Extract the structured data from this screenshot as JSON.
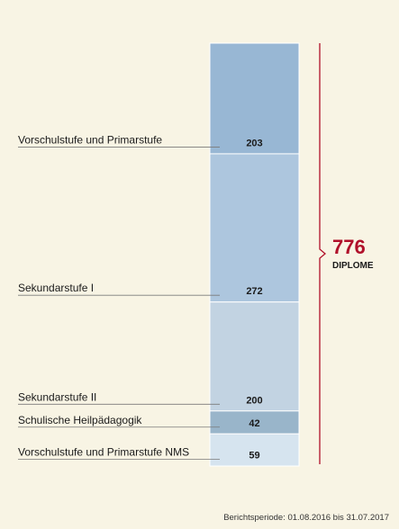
{
  "chart_data": {
    "type": "bar",
    "stacked": true,
    "categories": [
      "Vorschulstufe und Primarstufe",
      "Sekundarstufe I",
      "Sekundarstufe II",
      "Schulische Heilpädagogik",
      "Vorschulstufe und Primarstufe NMS"
    ],
    "values": [
      203,
      272,
      200,
      42,
      59
    ],
    "total": {
      "value": "776",
      "label": "DIPLOME"
    },
    "footnote": "Berichtsperiode: 01.08.2016 bis 31.07.2017"
  },
  "colors": {
    "background": "#f8f4e4",
    "segments": [
      "#98b7d4",
      "#adc6de",
      "#c2d3e2",
      "#99b5ca",
      "#d6e4ef"
    ],
    "segment_border": "#ffffff",
    "leader_line": "#7a7a7a",
    "brace": "#b0102a",
    "total": "#b0102a"
  }
}
